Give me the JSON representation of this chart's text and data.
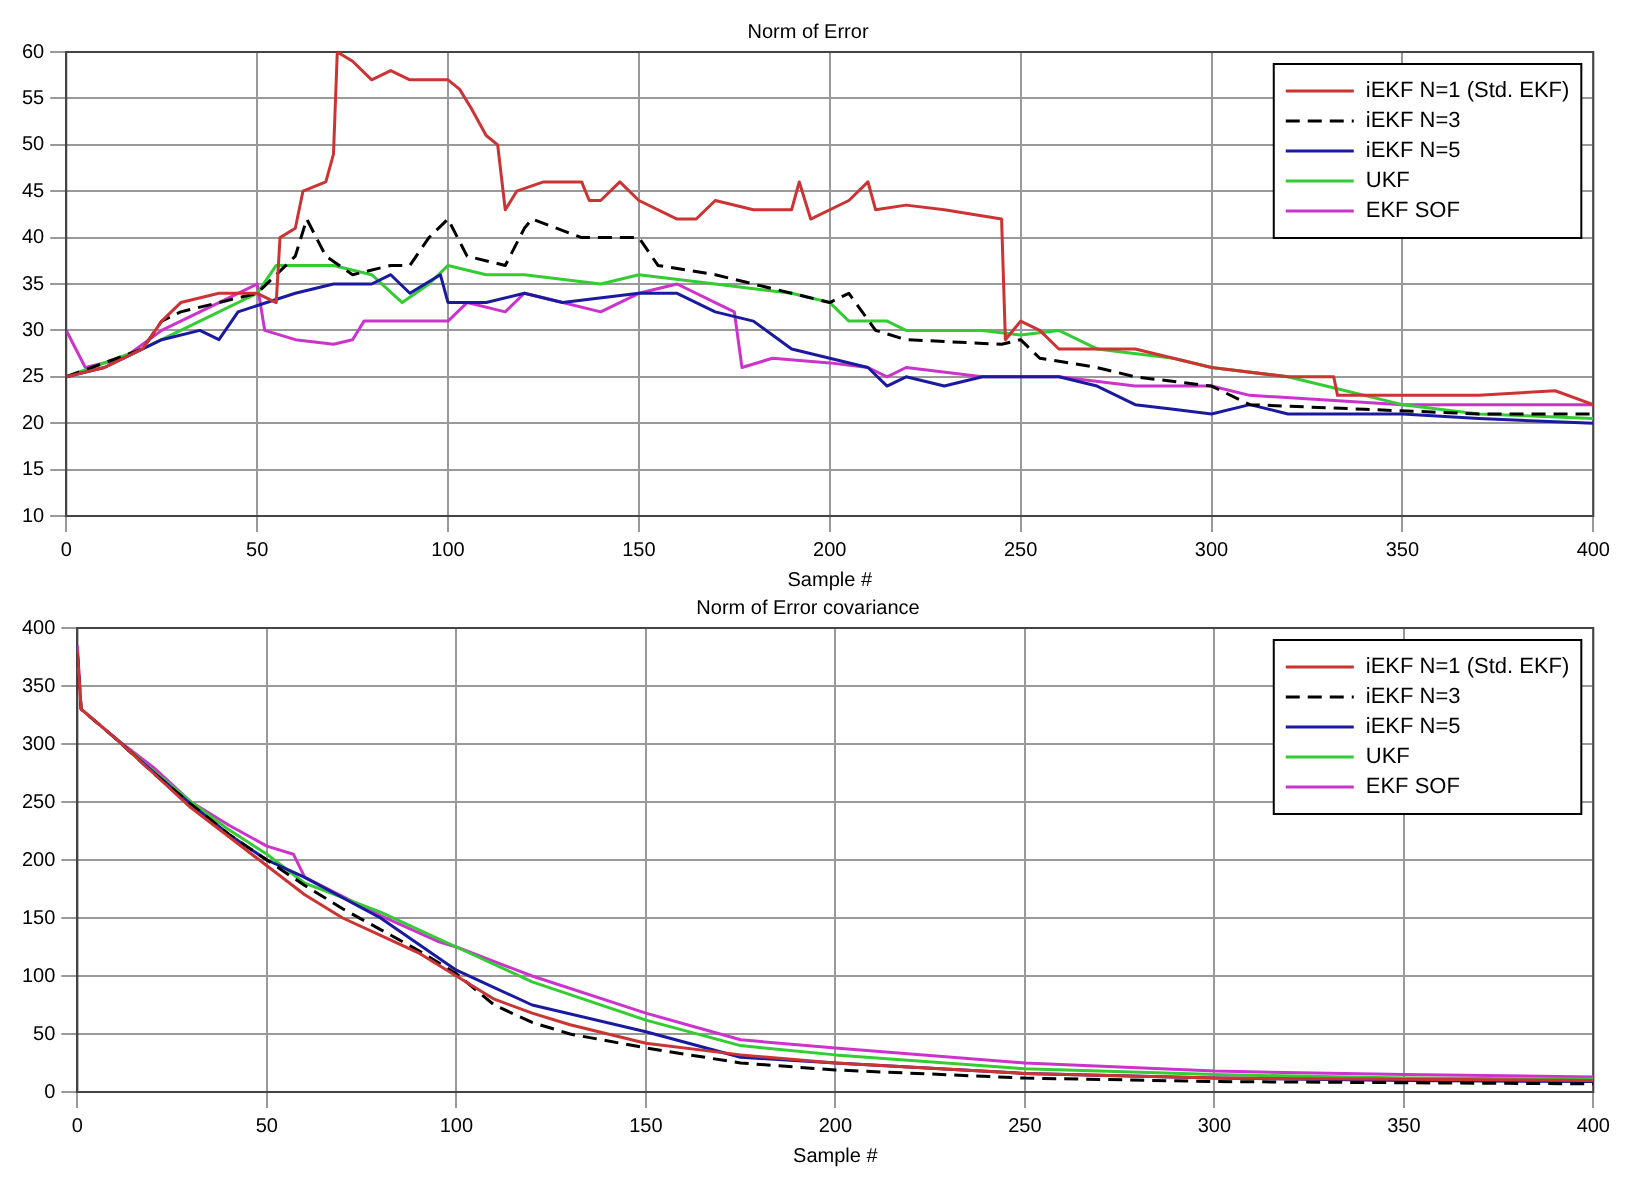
{
  "chart_data": [
    {
      "type": "line",
      "title": "Norm of Error",
      "xlabel": "Sample #",
      "xlim": [
        0,
        400
      ],
      "xticks": [
        0,
        50,
        100,
        150,
        200,
        250,
        300,
        350,
        400
      ],
      "ylim": [
        10,
        60
      ],
      "yticks": [
        10,
        15,
        20,
        25,
        30,
        35,
        40,
        45,
        50,
        55,
        60
      ],
      "grid": true,
      "legend": "top right",
      "series": [
        {
          "name": "iEKF N=1 (Std. EKF)",
          "color": "#cc3333",
          "x": [
            0,
            5,
            10,
            20,
            25,
            30,
            40,
            50,
            55,
            56,
            60,
            62,
            68,
            70,
            71,
            75,
            80,
            85,
            90,
            100,
            103,
            106,
            110,
            113,
            115,
            118,
            125,
            135,
            137,
            140,
            145,
            150,
            160,
            165,
            170,
            180,
            190,
            192,
            195,
            205,
            210,
            212,
            220,
            230,
            245,
            246,
            250,
            255,
            260,
            280,
            290,
            300,
            320,
            332,
            333,
            350,
            370,
            390,
            400
          ],
          "values": [
            25,
            25.5,
            26,
            28,
            31,
            33,
            34,
            34,
            33,
            40,
            41,
            45,
            46,
            49,
            60,
            59,
            57,
            58,
            57,
            57,
            56,
            54,
            51,
            50,
            43,
            45,
            46,
            46,
            44,
            44,
            46,
            44,
            42,
            42,
            44,
            43,
            43,
            46,
            42,
            44,
            46,
            43,
            43.5,
            43,
            42,
            29,
            31,
            30,
            28,
            28,
            27,
            26,
            25,
            25,
            23,
            23,
            23,
            23.5,
            22
          ]
        },
        {
          "name": "iEKF N=3",
          "color": "#000000",
          "line_style": "dashed",
          "x": [
            0,
            20,
            25,
            30,
            40,
            50,
            60,
            63,
            68,
            75,
            85,
            90,
            95,
            100,
            105,
            115,
            120,
            122,
            135,
            150,
            155,
            170,
            180,
            190,
            200,
            205,
            212,
            220,
            245,
            250,
            255,
            270,
            280,
            300,
            310,
            340,
            370,
            400
          ],
          "values": [
            25,
            28,
            31,
            32,
            33,
            34,
            38,
            42,
            38,
            36,
            37,
            37,
            40,
            42,
            38,
            37,
            41,
            42,
            40,
            40,
            37,
            36,
            35,
            34,
            33,
            34,
            30,
            29,
            28.5,
            29,
            27,
            26,
            25,
            24,
            22,
            21.5,
            21,
            21
          ]
        },
        {
          "name": "iEKF N=5",
          "color": "#1a1aa0",
          "x": [
            0,
            10,
            25,
            35,
            40,
            45,
            60,
            70,
            80,
            85,
            90,
            98,
            100,
            110,
            120,
            130,
            150,
            160,
            170,
            180,
            190,
            200,
            210,
            215,
            220,
            230,
            240,
            260,
            270,
            280,
            290,
            300,
            310,
            320,
            350,
            370,
            400
          ],
          "values": [
            25,
            26,
            29,
            30,
            29,
            32,
            34,
            35,
            35,
            36,
            34,
            36,
            33,
            33,
            34,
            33,
            34,
            34,
            32,
            31,
            28,
            27,
            26,
            24,
            25,
            24,
            25,
            25,
            24,
            22,
            21.5,
            21,
            22,
            21,
            21,
            20.5,
            20
          ]
        },
        {
          "name": "UKF",
          "color": "#33cc33",
          "x": [
            0,
            20,
            35,
            50,
            55,
            70,
            80,
            88,
            95,
            100,
            110,
            120,
            140,
            150,
            170,
            190,
            200,
            205,
            215,
            220,
            240,
            250,
            260,
            270,
            290,
            300,
            320,
            330,
            350,
            370,
            400
          ],
          "values": [
            25,
            28,
            31,
            34,
            37,
            37,
            36,
            33,
            35,
            37,
            36,
            36,
            35,
            36,
            35,
            34,
            33,
            31,
            31,
            30,
            30,
            29.5,
            30,
            28,
            27,
            26,
            25,
            24,
            22,
            21,
            20.5
          ]
        },
        {
          "name": "EKF SOF",
          "color": "#cc33cc",
          "x": [
            0,
            5,
            15,
            25,
            35,
            45,
            50,
            52,
            60,
            70,
            75,
            78,
            90,
            100,
            105,
            115,
            120,
            130,
            140,
            150,
            160,
            170,
            175,
            177,
            185,
            200,
            210,
            215,
            220,
            240,
            260,
            280,
            300,
            310,
            330,
            350,
            400
          ],
          "values": [
            30,
            26,
            27,
            30,
            32,
            34,
            35,
            30,
            29,
            28.5,
            29,
            31,
            31,
            31,
            33,
            32,
            34,
            33,
            32,
            34,
            35,
            33,
            32,
            26,
            27,
            26.5,
            26,
            25,
            26,
            25,
            25,
            24,
            24,
            23,
            22.5,
            22,
            22
          ]
        }
      ]
    },
    {
      "type": "line",
      "title": "Norm of Error covariance",
      "xlabel": "Sample #",
      "xlim": [
        0,
        400
      ],
      "xticks": [
        0,
        50,
        100,
        150,
        200,
        250,
        300,
        350,
        400
      ],
      "ylim": [
        0,
        400
      ],
      "yticks": [
        0,
        50,
        100,
        150,
        200,
        250,
        300,
        350,
        400
      ],
      "grid": true,
      "legend": "top right",
      "series": [
        {
          "name": "iEKF N=1 (Std. EKF)",
          "color": "#cc3333",
          "x": [
            0,
            1,
            10,
            20,
            30,
            40,
            50,
            60,
            70,
            80,
            90,
            100,
            110,
            120,
            130,
            150,
            175,
            200,
            250,
            300,
            350,
            400
          ],
          "values": [
            380,
            330,
            305,
            275,
            245,
            220,
            195,
            170,
            150,
            135,
            120,
            100,
            80,
            68,
            58,
            42,
            32,
            25,
            16,
            12,
            11,
            10
          ]
        },
        {
          "name": "iEKF N=3",
          "color": "#000000",
          "line_style": "dashed",
          "x": [
            0,
            1,
            10,
            20,
            30,
            40,
            50,
            60,
            70,
            80,
            90,
            100,
            110,
            120,
            130,
            150,
            175,
            200,
            250,
            300,
            350,
            400
          ],
          "values": [
            378,
            330,
            305,
            275,
            248,
            222,
            200,
            178,
            158,
            140,
            122,
            102,
            75,
            60,
            50,
            38,
            25,
            19,
            12,
            9,
            8,
            7
          ]
        },
        {
          "name": "iEKF N=5",
          "color": "#1a1aa0",
          "x": [
            10,
            20,
            30,
            40,
            50,
            60,
            80,
            100,
            120,
            150,
            175,
            200,
            250,
            300,
            350,
            400
          ],
          "values": [
            305,
            276,
            248,
            222,
            200,
            185,
            150,
            105,
            75,
            52,
            30,
            25,
            16,
            12,
            10,
            9
          ]
        },
        {
          "name": "UKF",
          "color": "#33cc33",
          "x": [
            10,
            20,
            30,
            40,
            50,
            60,
            80,
            100,
            120,
            150,
            175,
            200,
            250,
            300,
            350,
            400
          ],
          "values": [
            305,
            277,
            250,
            226,
            205,
            180,
            155,
            125,
            95,
            62,
            40,
            32,
            20,
            15,
            12,
            11
          ]
        },
        {
          "name": "EKF SOF",
          "color": "#cc33cc",
          "x": [
            0,
            1,
            10,
            20,
            30,
            40,
            50,
            57,
            60,
            80,
            95,
            100,
            120,
            150,
            175,
            200,
            250,
            300,
            350,
            400
          ],
          "values": [
            385,
            330,
            305,
            280,
            250,
            230,
            212,
            205,
            185,
            152,
            130,
            125,
            100,
            68,
            45,
            38,
            25,
            18,
            15,
            13
          ]
        }
      ]
    }
  ]
}
